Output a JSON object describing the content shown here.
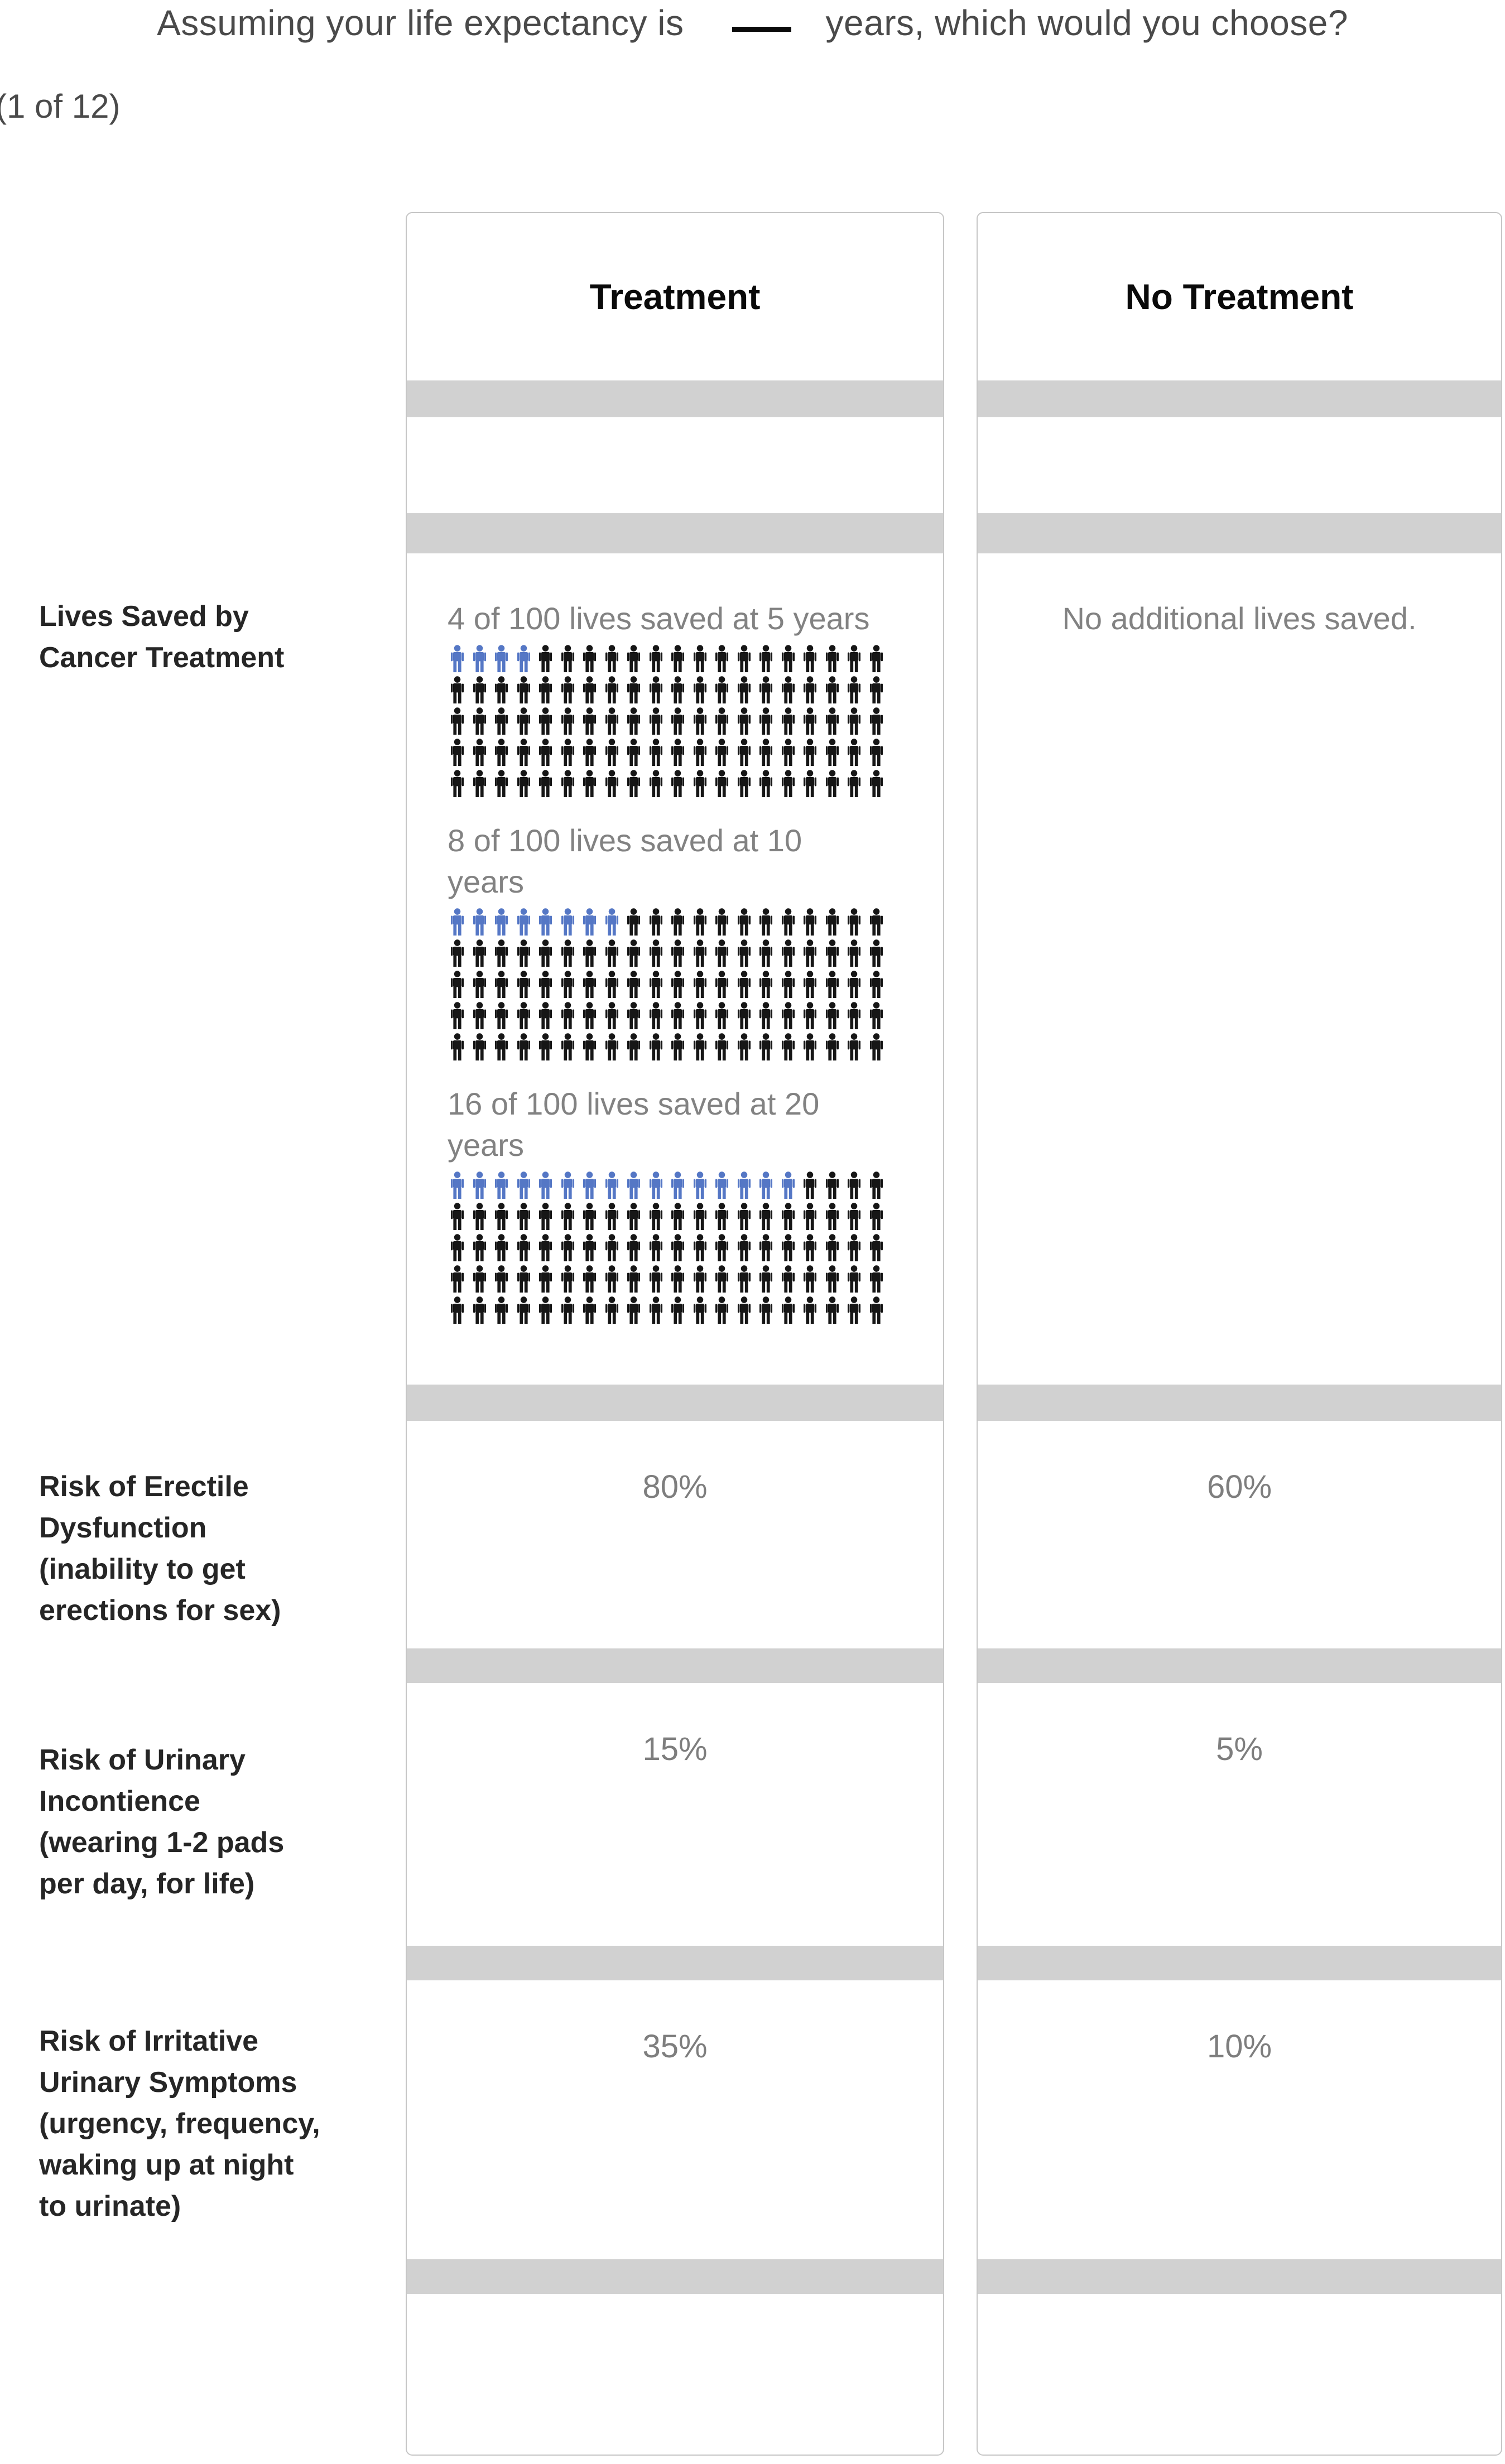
{
  "title": {
    "prefix": "Assuming your life expectancy is",
    "suffix": "years, which would you choose?"
  },
  "progress_indicator": "(1 of 12)",
  "table": {
    "columns": [
      {
        "id": "treatment",
        "label": "Treatment"
      },
      {
        "id": "no_treatment",
        "label": "No Treatment"
      }
    ],
    "rows": [
      {
        "label": "Lives Saved by Cancer Treatment",
        "treatment": {
          "pictographs": [
            {
              "caption": "4 of 100 lives saved at 5 years",
              "highlighted": 4,
              "total": 100,
              "per_row": 20
            },
            {
              "caption": "8 of 100 lives saved at 10 years",
              "highlighted": 8,
              "total": 100,
              "per_row": 20
            },
            {
              "caption": "16 of 100 lives saved at 20 years",
              "highlighted": 16,
              "total": 100,
              "per_row": 20
            }
          ]
        },
        "no_treatment": "No additional lives saved."
      },
      {
        "label": "Risk of Erectile Dysfunction (inability to get erections for sex)",
        "treatment": "80%",
        "no_treatment": "60%"
      },
      {
        "label": "Risk of Urinary Incontience (wearing 1-2 pads per day, for life)",
        "treatment": "15%",
        "no_treatment": "5%"
      },
      {
        "label": "Risk of Irritative Urinary Symptoms (urgency, frequency, waking up at night to urinate)",
        "treatment": "35%",
        "no_treatment": "10%"
      }
    ]
  },
  "colors": {
    "saved_life_blue": "#5577c5",
    "unsaved_life_black": "#161616",
    "row_divider_grey": "#d1d1d1"
  },
  "icons": {
    "person_icon": "person-pictogram"
  }
}
